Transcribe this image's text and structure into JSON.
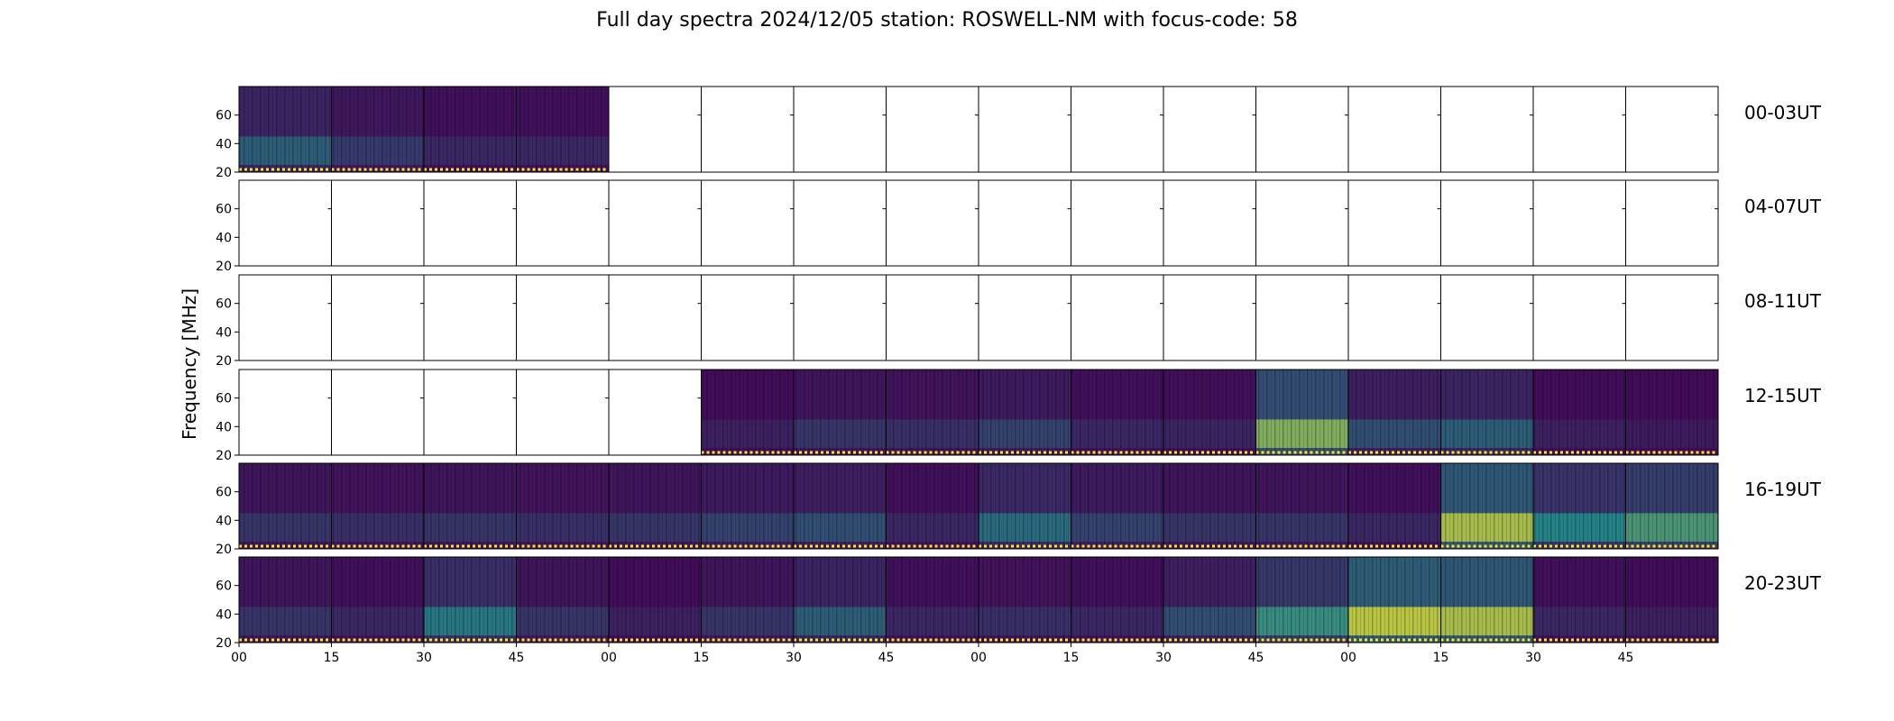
{
  "title": "Full day spectra 2024/12/05 station: ROSWELL-NM with focus-code: 58",
  "chart_data": {
    "type": "heatmap",
    "title": "Full day spectra 2024/12/05 station: ROSWELL-NM with focus-code: 58",
    "ylabel": "Frequency [MHz]",
    "ylim": [
      20,
      80
    ],
    "yticks": [
      "20",
      "40",
      "60"
    ],
    "xticks": [
      "00",
      "15",
      "30",
      "45",
      "00",
      "15",
      "30",
      "45",
      "00",
      "15",
      "30",
      "45",
      "00",
      "15",
      "30",
      "45"
    ],
    "colormap": "viridis",
    "colors": {
      "background": "#440154",
      "mid": "#21918c",
      "high": "#fde725",
      "outline": "#000000"
    },
    "panel_minutes": 15,
    "rows": [
      {
        "label": "00-03UT",
        "intensity": [
          0.35,
          0.22,
          0.15,
          0.15,
          null,
          null,
          null,
          null,
          null,
          null,
          null,
          null,
          null,
          null,
          null,
          null
        ]
      },
      {
        "label": "04-07UT",
        "intensity": [
          null,
          null,
          null,
          null,
          null,
          null,
          null,
          null,
          null,
          null,
          null,
          null,
          null,
          null,
          null,
          null
        ]
      },
      {
        "label": "08-11UT",
        "intensity": [
          null,
          null,
          null,
          null,
          null,
          null,
          null,
          null,
          null,
          null,
          null,
          null,
          null,
          null,
          null,
          null
        ]
      },
      {
        "label": "12-15UT",
        "intensity": [
          null,
          null,
          null,
          null,
          null,
          0.12,
          0.2,
          0.18,
          0.25,
          0.15,
          0.14,
          0.75,
          0.3,
          0.35,
          0.12,
          0.1
        ]
      },
      {
        "label": "16-19UT",
        "intensity": [
          0.2,
          0.18,
          0.2,
          0.18,
          0.2,
          0.25,
          0.3,
          0.15,
          0.4,
          0.25,
          0.2,
          0.2,
          0.15,
          0.85,
          0.5,
          0.6
        ]
      },
      {
        "label": "20-23UT",
        "intensity": [
          0.2,
          0.15,
          0.45,
          0.2,
          0.12,
          0.2,
          0.35,
          0.15,
          0.18,
          0.15,
          0.3,
          0.55,
          0.9,
          0.85,
          0.15,
          0.12
        ]
      }
    ]
  }
}
